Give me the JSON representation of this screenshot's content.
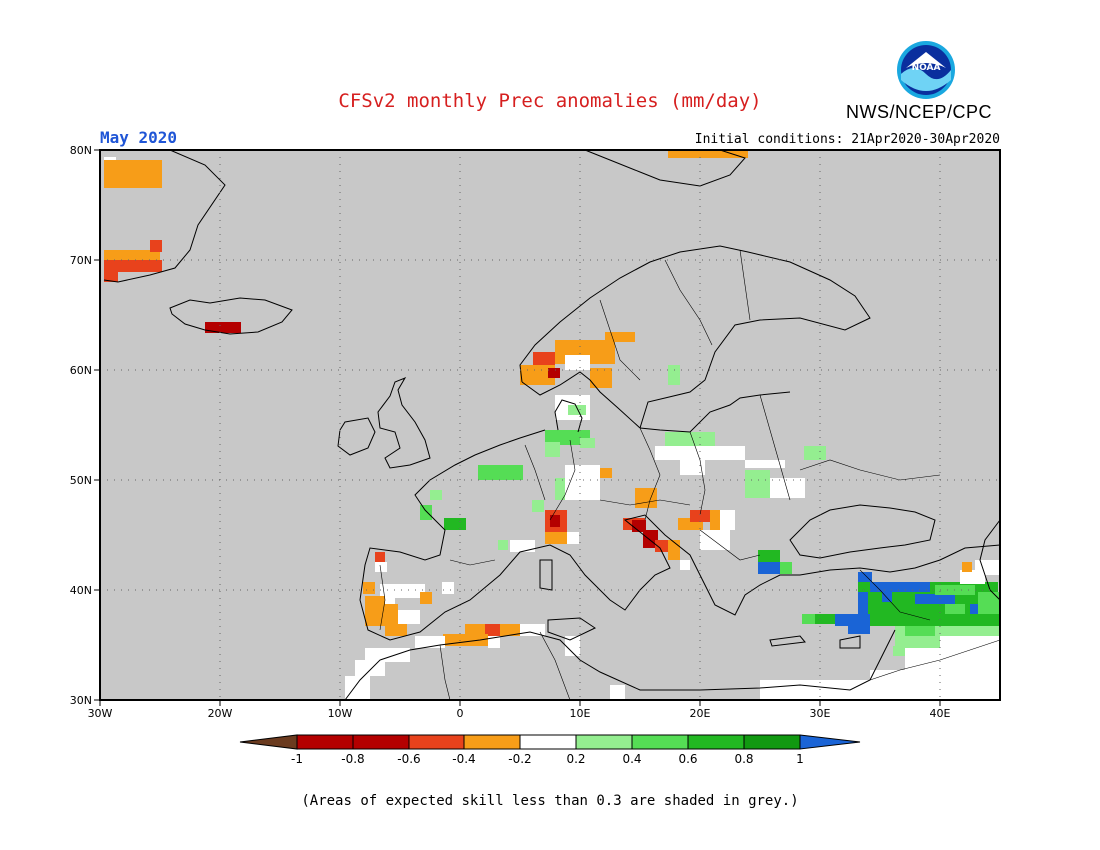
{
  "header": {
    "title": "CFSv2 monthly Prec anomalies (mm/day)",
    "agency": "NWS/NCEP/CPC",
    "month": "May 2020",
    "initial_conditions": "Initial conditions: 21Apr2020-30Apr2020",
    "logo_text": "NOAA"
  },
  "map": {
    "lon_range": [
      -30,
      45
    ],
    "lat_range": [
      30,
      80
    ],
    "x_ticks": [
      "30W",
      "20W",
      "10W",
      "0",
      "10E",
      "20E",
      "30E",
      "40E"
    ],
    "y_ticks": [
      "80N",
      "70N",
      "60N",
      "50N",
      "40N",
      "30N"
    ],
    "background_color": "#c8c8c8",
    "grid": "dotted"
  },
  "colorbar": {
    "tick_labels": [
      "-1",
      "-0.8",
      "-0.6",
      "-0.4",
      "-0.2",
      "0.2",
      "0.4",
      "0.6",
      "0.8",
      "1"
    ],
    "colors": [
      "#6b3b1f",
      "#b40000",
      "#e8421c",
      "#f79d18",
      "#ffffff",
      "#94ee90",
      "#55dd55",
      "#22b822",
      "#119911",
      "#1a64d6"
    ]
  },
  "footnote": "(Areas of expected skill less than 0.3 are shaded in grey.)"
}
